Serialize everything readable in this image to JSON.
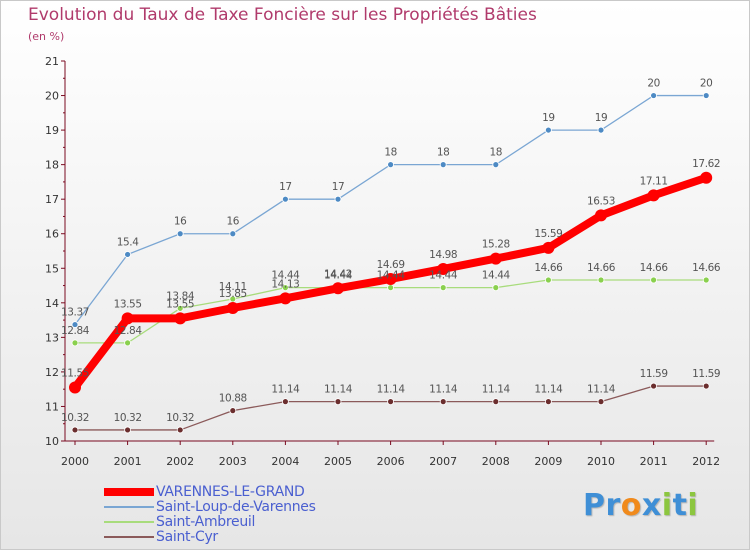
{
  "chart_data": {
    "type": "line",
    "title": "Evolution du Taux de Taxe Foncière sur les Propriétés Bâties",
    "subtitle": "(en %)",
    "xlabel": "",
    "ylabel": "(en %)",
    "x": [
      "2000",
      "2001",
      "2002",
      "2003",
      "2004",
      "2005",
      "2006",
      "2007",
      "2008",
      "2009",
      "2010",
      "2011",
      "2012"
    ],
    "ylim": [
      10,
      21
    ],
    "yticks": [
      "10",
      "11",
      "12",
      "13",
      "14",
      "15",
      "16",
      "17",
      "18",
      "19",
      "20",
      "21"
    ],
    "grid": false,
    "legend_position": "bottom-left",
    "series": [
      {
        "name": "VARENNES-LE-GRAND",
        "color": "#ff0000",
        "values": [
          11.55,
          13.55,
          13.55,
          13.85,
          14.13,
          14.42,
          14.69,
          14.98,
          15.28,
          15.59,
          16.53,
          17.11,
          17.62
        ],
        "labels": [
          "11.55",
          "13.55",
          "13.55",
          "13.85",
          "14.13",
          "14.42",
          "14.69",
          "14.98",
          "15.28",
          "15.59",
          "16.53",
          "17.11",
          "17.62"
        ],
        "label_side": "above"
      },
      {
        "name": "Saint-Loup-de-Varennes",
        "color": "#7aa6d3",
        "marker_color": "#4d8ac4",
        "values": [
          13.37,
          15.4,
          16,
          16,
          17,
          17,
          18,
          18,
          18,
          19,
          19,
          20,
          20
        ],
        "labels": [
          "13.37",
          "15.4",
          "16",
          "16",
          "17",
          "17",
          "18",
          "18",
          "18",
          "19",
          "19",
          "20",
          "20"
        ],
        "label_side": "above"
      },
      {
        "name": "Saint-Ambreuil",
        "color": "#a8dc7c",
        "marker_color": "#8ad04e",
        "values": [
          12.84,
          12.84,
          13.84,
          14.11,
          14.44,
          14.44,
          14.44,
          14.44,
          14.44,
          14.66,
          14.66,
          14.66,
          14.66
        ],
        "labels": [
          "12.84",
          "12.84",
          "13.84",
          "14.11",
          "14.44",
          "14.44",
          "14.44",
          "14.44",
          "14.44",
          "14.66",
          "14.66",
          "14.66",
          "14.66"
        ],
        "label_side": "above"
      },
      {
        "name": "Saint-Cyr",
        "color": "#8b5a5a",
        "marker_color": "#6b2e2e",
        "values": [
          10.32,
          10.32,
          10.32,
          10.88,
          11.14,
          11.14,
          11.14,
          11.14,
          11.14,
          11.14,
          11.14,
          11.59,
          11.59
        ],
        "labels": [
          "10.32",
          "10.32",
          "10.32",
          "10.88",
          "11.14",
          "11.14",
          "11.14",
          "11.14",
          "11.14",
          "11.14",
          "11.14",
          "11.59",
          "11.59"
        ],
        "label_side": "above"
      }
    ]
  },
  "legend": {
    "items": [
      {
        "label": "VARENNES-LE-GRAND",
        "color": "#ff0000",
        "text_color": "#4a5fd0"
      },
      {
        "label": "Saint-Loup-de-Varennes",
        "color": "#7aa6d3",
        "text_color": "#4a5fd0"
      },
      {
        "label": "Saint-Ambreuil",
        "color": "#a8dc7c",
        "text_color": "#4a5fd0"
      },
      {
        "label": "Saint-Cyr",
        "color": "#8b5a5a",
        "text_color": "#4a5fd0"
      }
    ]
  },
  "logo": {
    "letters": [
      "P",
      "r",
      "o",
      "x",
      "i",
      "t",
      "i"
    ],
    "colors": [
      "#3f8fd6",
      "#3f8fd6",
      "#f08a1c",
      "#3f8fd6",
      "#8cc63f",
      "#3f8fd6",
      "#8cc63f"
    ]
  },
  "colors": {
    "title": "#b03a6b",
    "axis": "#7a0a20",
    "tick_label": "#333333",
    "value_label": "#555555"
  }
}
